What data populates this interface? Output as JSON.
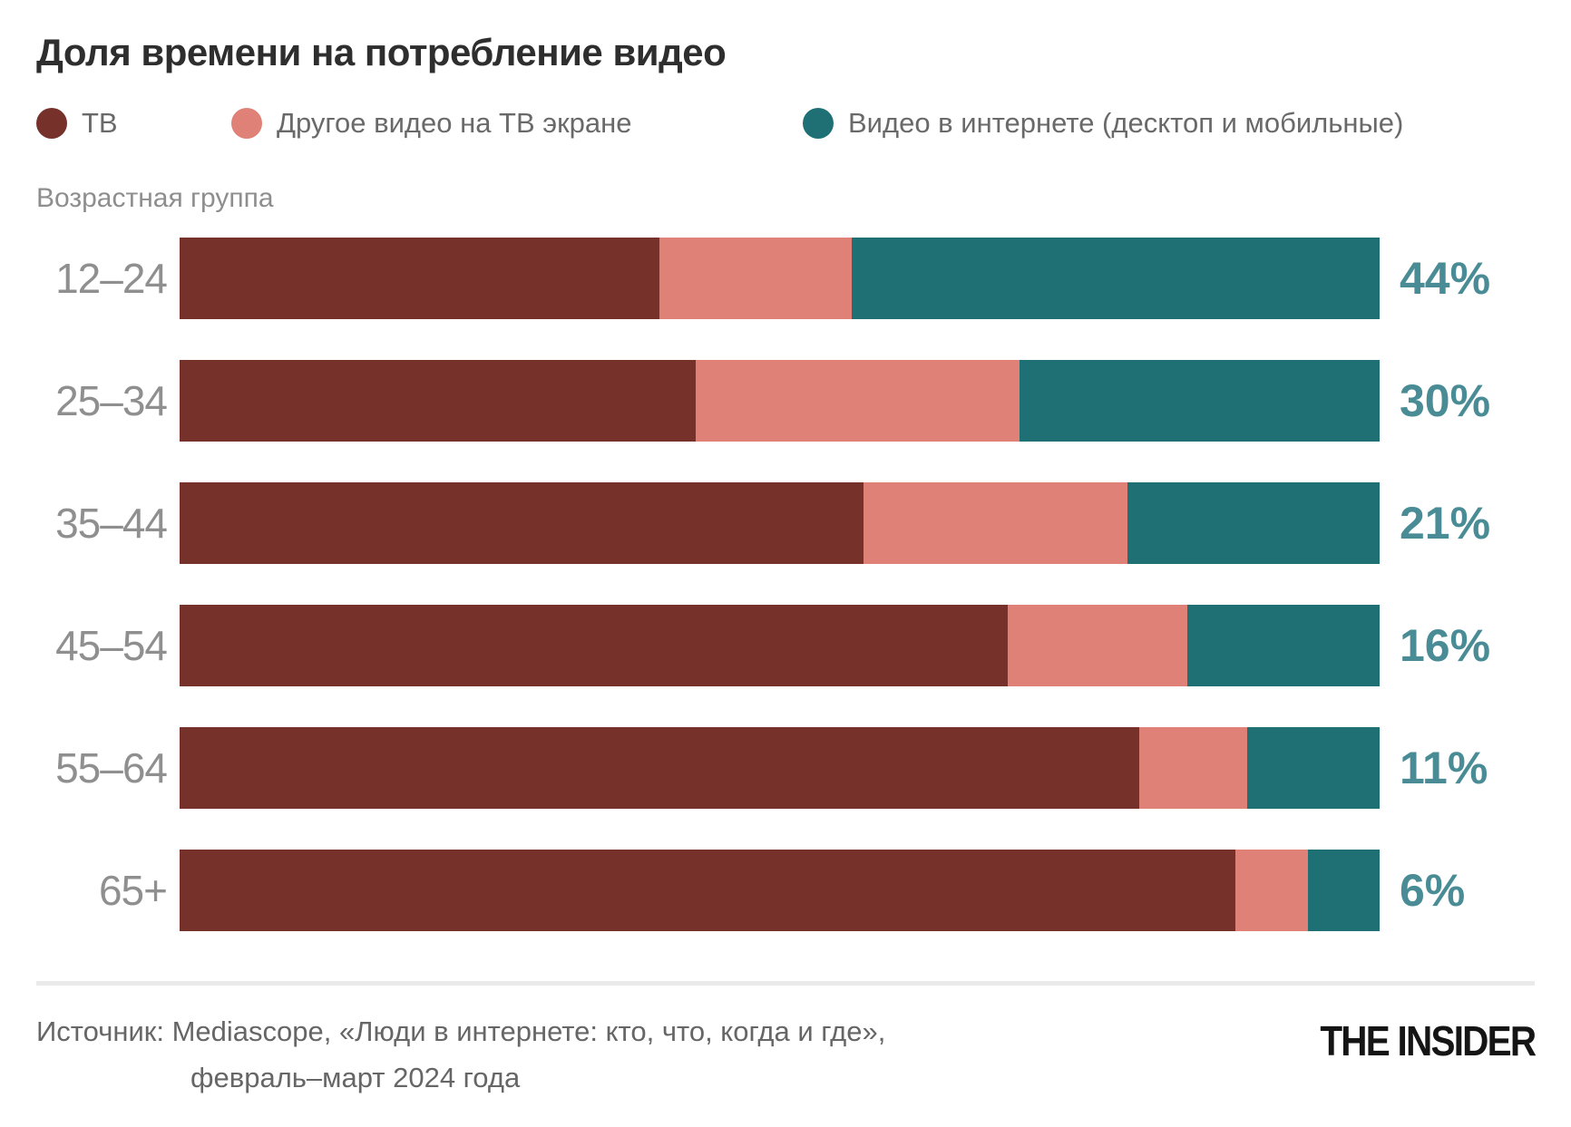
{
  "title": "Доля времени на потребление видео",
  "axis_label": "Возрастная группа",
  "legend": [
    {
      "label": "ТВ",
      "color": "#76312b"
    },
    {
      "label": "Другое видео на ТВ экране",
      "color": "#e08177"
    },
    {
      "label": "Видео в интернете (десктоп и мобильные)",
      "color": "#1e7075"
    }
  ],
  "chart_data": {
    "type": "bar",
    "orientation": "horizontal",
    "stacked": true,
    "unit": "%",
    "title": "Доля времени на потребление видео",
    "xlabel": "",
    "ylabel": "Возрастная группа",
    "xlim": [
      0,
      100
    ],
    "grid": false,
    "legend_position": "top",
    "categories": [
      "12–24",
      "25–34",
      "35–44",
      "45–54",
      "55–64",
      "65+"
    ],
    "series": [
      {
        "name": "ТВ",
        "color": "#76312b",
        "values": [
          40,
          43,
          57,
          69,
          80,
          88
        ]
      },
      {
        "name": "Другое видео на ТВ экране",
        "color": "#e08177",
        "values": [
          16,
          27,
          22,
          15,
          9,
          6
        ]
      },
      {
        "name": "Видео в интернете (десктоп и мобильные)",
        "color": "#1e7075",
        "values": [
          44,
          30,
          21,
          16,
          11,
          6
        ]
      }
    ],
    "value_labels": [
      "44%",
      "30%",
      "21%",
      "16%",
      "11%",
      "6%"
    ],
    "value_labels_refer_to": "Видео в интернете (десктоп и мобильные)",
    "value_label_color": "#4a8c95"
  },
  "footer": {
    "source_line1": "Источник: Mediascope, «Люди в интернете: кто, что, когда и где»,",
    "source_line2": "февраль–март 2024 года",
    "logo": "THE INSIDER"
  }
}
